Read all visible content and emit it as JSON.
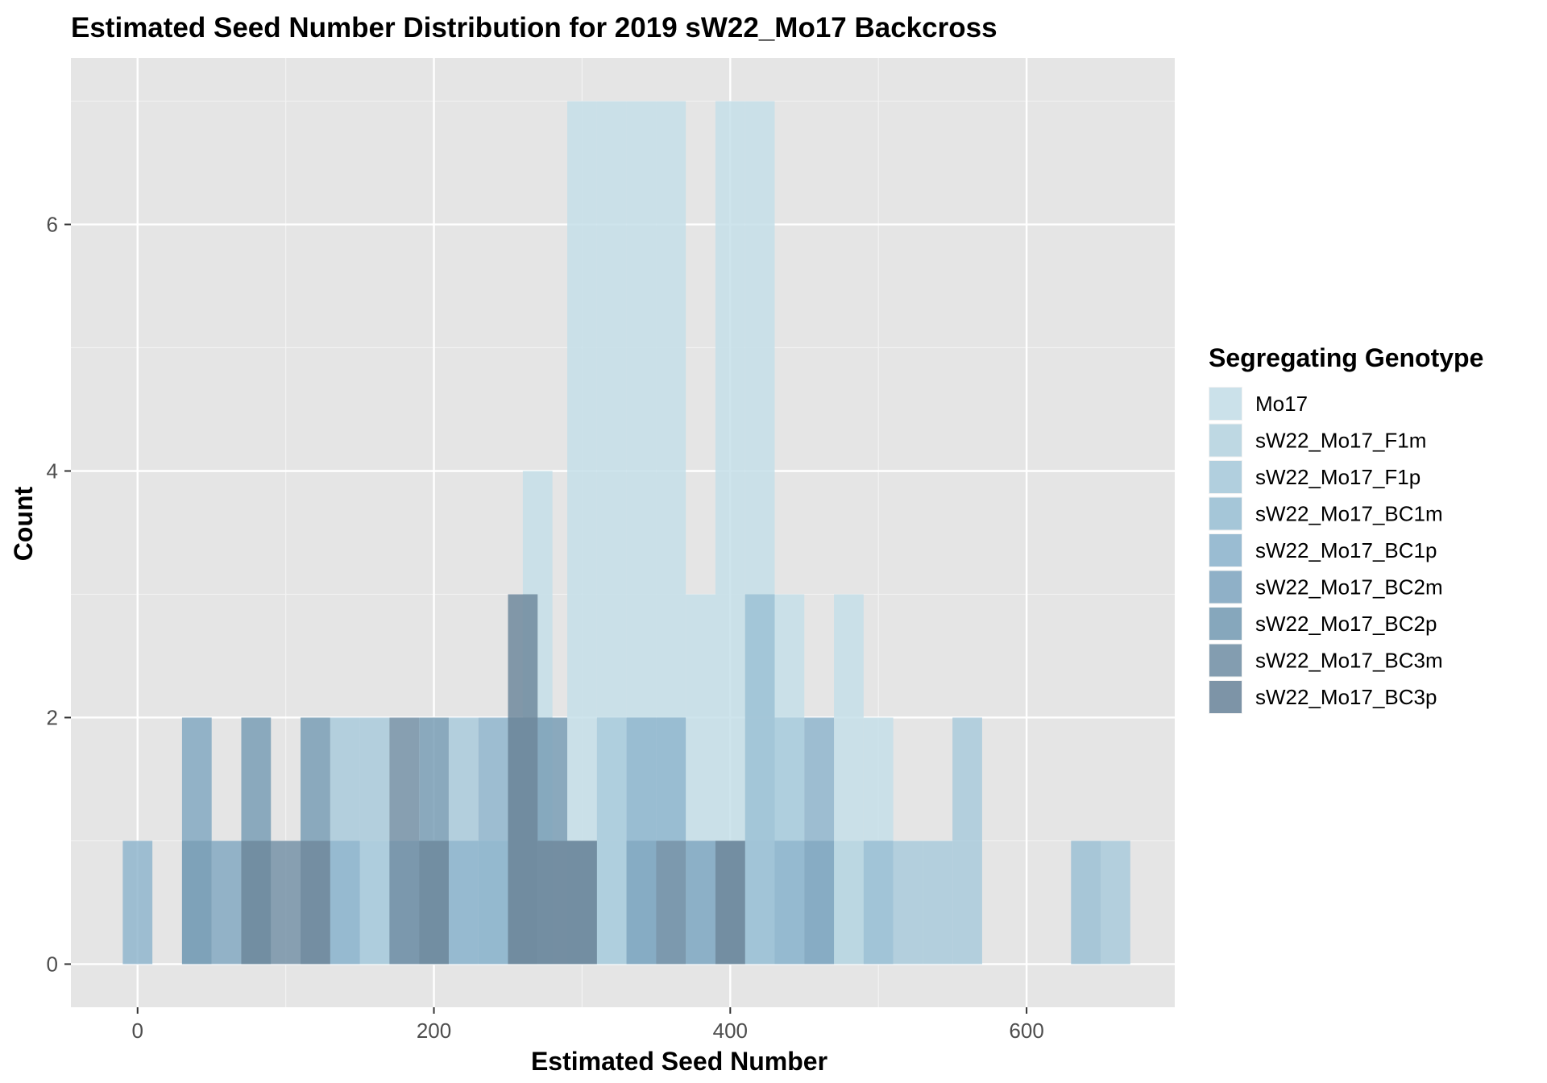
{
  "chart_data": {
    "type": "histogram",
    "title": "Estimated Seed Number Distribution for 2019 sW22_Mo17 Backcross",
    "xlabel": "Estimated Seed Number",
    "ylabel": "Count",
    "xlim": [
      -45,
      700
    ],
    "ylim": [
      -0.35,
      7.35
    ],
    "x_ticks": [
      0,
      200,
      400,
      600
    ],
    "y_ticks": [
      0,
      2,
      4,
      6
    ],
    "bin_width": 20,
    "legend_title": "Segregating Genotype",
    "series": [
      {
        "name": "Mo17",
        "color": "#c6dfe9",
        "bins": [
          {
            "x": 270,
            "count": 4
          },
          {
            "x": 300,
            "count": 7
          },
          {
            "x": 320,
            "count": 7
          },
          {
            "x": 340,
            "count": 7
          },
          {
            "x": 360,
            "count": 7
          },
          {
            "x": 380,
            "count": 3
          },
          {
            "x": 400,
            "count": 7
          },
          {
            "x": 420,
            "count": 7
          },
          {
            "x": 440,
            "count": 3
          },
          {
            "x": 480,
            "count": 3
          },
          {
            "x": 500,
            "count": 2
          }
        ]
      },
      {
        "name": "sW22_Mo17_F1m",
        "color": "#b8d5e1",
        "bins": [
          {
            "x": 160,
            "count": 1
          },
          {
            "x": 300,
            "count": 1
          },
          {
            "x": 360,
            "count": 1
          },
          {
            "x": 380,
            "count": 1
          },
          {
            "x": 420,
            "count": 1
          },
          {
            "x": 480,
            "count": 1
          },
          {
            "x": 500,
            "count": 1
          }
        ]
      },
      {
        "name": "sW22_Mo17_F1p",
        "color": "#aacbdc",
        "bins": [
          {
            "x": 140,
            "count": 2
          },
          {
            "x": 160,
            "count": 2
          },
          {
            "x": 220,
            "count": 2
          },
          {
            "x": 320,
            "count": 2
          },
          {
            "x": 440,
            "count": 2
          },
          {
            "x": 520,
            "count": 1
          },
          {
            "x": 540,
            "count": 1
          },
          {
            "x": 560,
            "count": 2
          },
          {
            "x": 660,
            "count": 1
          }
        ]
      },
      {
        "name": "sW22_Mo17_BC1m",
        "color": "#9cc1d5",
        "bins": [
          {
            "x": 80,
            "count": 1
          },
          {
            "x": 200,
            "count": 1
          },
          {
            "x": 240,
            "count": 1
          },
          {
            "x": 340,
            "count": 1
          },
          {
            "x": 420,
            "count": 3
          },
          {
            "x": 500,
            "count": 1
          },
          {
            "x": 640,
            "count": 1
          }
        ]
      },
      {
        "name": "sW22_Mo17_BC1p",
        "color": "#90b6ce",
        "bins": [
          {
            "x": 0,
            "count": 1
          },
          {
            "x": 140,
            "count": 1
          },
          {
            "x": 220,
            "count": 1
          },
          {
            "x": 240,
            "count": 2
          },
          {
            "x": 340,
            "count": 2
          },
          {
            "x": 360,
            "count": 2
          },
          {
            "x": 440,
            "count": 1
          },
          {
            "x": 460,
            "count": 2
          }
        ]
      },
      {
        "name": "sW22_Mo17_BC2m",
        "color": "#84a9c2",
        "bins": [
          {
            "x": 40,
            "count": 2
          },
          {
            "x": 60,
            "count": 1
          },
          {
            "x": 180,
            "count": 1
          },
          {
            "x": 260,
            "count": 2
          },
          {
            "x": 340,
            "count": 1
          },
          {
            "x": 380,
            "count": 1
          },
          {
            "x": 460,
            "count": 1
          }
        ]
      },
      {
        "name": "sW22_Mo17_BC2p",
        "color": "#7a9fb6",
        "bins": [
          {
            "x": 40,
            "count": 1
          },
          {
            "x": 80,
            "count": 2
          },
          {
            "x": 120,
            "count": 2
          },
          {
            "x": 200,
            "count": 2
          },
          {
            "x": 280,
            "count": 2
          },
          {
            "x": 300,
            "count": 1
          },
          {
            "x": 400,
            "count": 1
          }
        ]
      },
      {
        "name": "sW22_Mo17_BC3m",
        "color": "#7793a8",
        "bins": [
          {
            "x": 100,
            "count": 1
          },
          {
            "x": 180,
            "count": 2
          },
          {
            "x": 260,
            "count": 2
          },
          {
            "x": 360,
            "count": 1
          }
        ]
      },
      {
        "name": "sW22_Mo17_BC3p",
        "color": "#70899e",
        "bins": [
          {
            "x": 80,
            "count": 1
          },
          {
            "x": 120,
            "count": 1
          },
          {
            "x": 200,
            "count": 1
          },
          {
            "x": 260,
            "count": 3
          },
          {
            "x": 280,
            "count": 1
          },
          {
            "x": 300,
            "count": 1
          },
          {
            "x": 400,
            "count": 1
          }
        ]
      }
    ]
  }
}
